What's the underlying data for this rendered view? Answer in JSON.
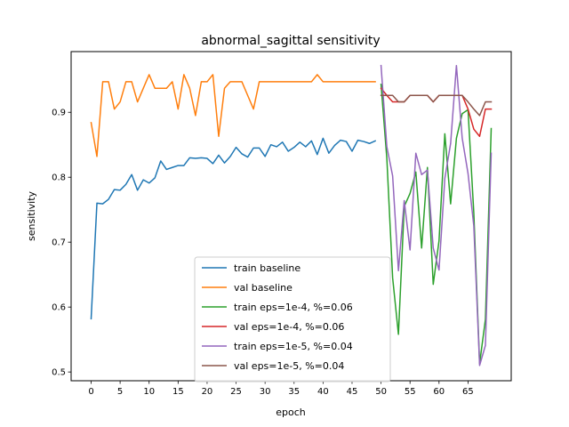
{
  "chart_data": {
    "type": "line",
    "title": "abnormal_sagittal sensitivity",
    "xlabel": "epoch",
    "ylabel": "sensitivity",
    "xlim": [
      -3.45,
      72.45
    ],
    "ylim": [
      0.4865,
      0.9935
    ],
    "xticks": [
      0,
      5,
      10,
      15,
      20,
      25,
      30,
      35,
      40,
      45,
      50,
      55,
      60,
      65
    ],
    "yticks": [
      0.5,
      0.6,
      0.7,
      0.8,
      0.9
    ],
    "ytick_labels": [
      "0.5",
      "0.6",
      "0.7",
      "0.8",
      "0.9"
    ],
    "grid": false,
    "legend_position": "lower center",
    "series": [
      {
        "name": "train baseline",
        "color": "#1f77b4",
        "x": [
          0,
          1,
          2,
          3,
          4,
          5,
          6,
          7,
          8,
          9,
          10,
          11,
          12,
          13,
          14,
          15,
          16,
          17,
          18,
          19,
          20,
          21,
          22,
          23,
          24,
          25,
          26,
          27,
          28,
          29,
          30,
          31,
          32,
          33,
          34,
          35,
          36,
          37,
          38,
          39,
          40,
          41,
          42,
          43,
          44,
          45,
          46,
          47,
          48,
          49
        ],
        "y": [
          0.582,
          0.76,
          0.759,
          0.766,
          0.781,
          0.78,
          0.789,
          0.804,
          0.78,
          0.796,
          0.791,
          0.799,
          0.825,
          0.812,
          0.815,
          0.818,
          0.818,
          0.83,
          0.829,
          0.83,
          0.829,
          0.821,
          0.834,
          0.822,
          0.832,
          0.846,
          0.836,
          0.831,
          0.845,
          0.845,
          0.832,
          0.85,
          0.847,
          0.854,
          0.84,
          0.846,
          0.854,
          0.847,
          0.856,
          0.835,
          0.86,
          0.837,
          0.849,
          0.857,
          0.855,
          0.84,
          0.857,
          0.855,
          0.852,
          0.856
        ]
      },
      {
        "name": "val baseline",
        "color": "#ff7f0e",
        "x": [
          0,
          1,
          2,
          3,
          4,
          5,
          6,
          7,
          8,
          9,
          10,
          11,
          12,
          13,
          14,
          15,
          16,
          17,
          18,
          19,
          20,
          21,
          22,
          23,
          24,
          25,
          26,
          27,
          28,
          29,
          30,
          31,
          32,
          33,
          34,
          35,
          36,
          37,
          38,
          39,
          40,
          41,
          42,
          43,
          44,
          45,
          46,
          47,
          48,
          49
        ],
        "y": [
          0.884,
          0.832,
          0.947,
          0.947,
          0.905,
          0.916,
          0.947,
          0.947,
          0.916,
          0.937,
          0.958,
          0.937,
          0.937,
          0.937,
          0.947,
          0.905,
          0.958,
          0.937,
          0.895,
          0.947,
          0.947,
          0.958,
          0.863,
          0.937,
          0.947,
          0.947,
          0.947,
          0.926,
          0.905,
          0.947,
          0.947,
          0.947,
          0.947,
          0.947,
          0.947,
          0.947,
          0.947,
          0.947,
          0.947,
          0.958,
          0.947,
          0.947,
          0.947,
          0.947,
          0.947,
          0.947,
          0.947,
          0.947,
          0.947,
          0.947
        ]
      },
      {
        "name": "train eps=1e-4, %=0.06",
        "color": "#2ca02c",
        "x": [
          50,
          51,
          52,
          53,
          54,
          55,
          56,
          57,
          58,
          59,
          60,
          61,
          62,
          63,
          64,
          65,
          66,
          67,
          68,
          69
        ],
        "y": [
          0.943,
          0.829,
          0.645,
          0.558,
          0.755,
          0.775,
          0.808,
          0.691,
          0.815,
          0.635,
          0.702,
          0.867,
          0.759,
          0.86,
          0.898,
          0.904,
          0.745,
          0.513,
          0.581,
          0.875
        ]
      },
      {
        "name": "val eps=1e-4, %=0.06",
        "color": "#d62728",
        "x": [
          50,
          51,
          52,
          53,
          54,
          55,
          56,
          57,
          58,
          59,
          60,
          61,
          62,
          63,
          64,
          65,
          66,
          67,
          68,
          69
        ],
        "y": [
          0.937,
          0.926,
          0.916,
          0.916,
          0.916,
          0.926,
          0.926,
          0.926,
          0.926,
          0.916,
          0.926,
          0.926,
          0.926,
          0.926,
          0.926,
          0.905,
          0.874,
          0.863,
          0.905,
          0.905
        ]
      },
      {
        "name": "train eps=1e-5, %=0.04",
        "color": "#9467bd",
        "x": [
          50,
          51,
          52,
          53,
          54,
          55,
          56,
          57,
          58,
          59,
          60,
          61,
          62,
          63,
          64,
          65,
          66,
          67,
          68,
          69
        ],
        "y": [
          0.972,
          0.847,
          0.802,
          0.656,
          0.764,
          0.688,
          0.837,
          0.804,
          0.811,
          0.691,
          0.657,
          0.798,
          0.852,
          0.972,
          0.86,
          0.806,
          0.725,
          0.51,
          0.541,
          0.837
        ]
      },
      {
        "name": "val eps=1e-5, %=0.04",
        "color": "#8c564b",
        "x": [
          50,
          51,
          52,
          53,
          54,
          55,
          56,
          57,
          58,
          59,
          60,
          61,
          62,
          63,
          64,
          65,
          66,
          67,
          68,
          69
        ],
        "y": [
          0.926,
          0.926,
          0.926,
          0.916,
          0.916,
          0.926,
          0.926,
          0.926,
          0.926,
          0.916,
          0.926,
          0.926,
          0.926,
          0.926,
          0.926,
          0.916,
          0.905,
          0.895,
          0.916,
          0.916
        ]
      }
    ]
  }
}
